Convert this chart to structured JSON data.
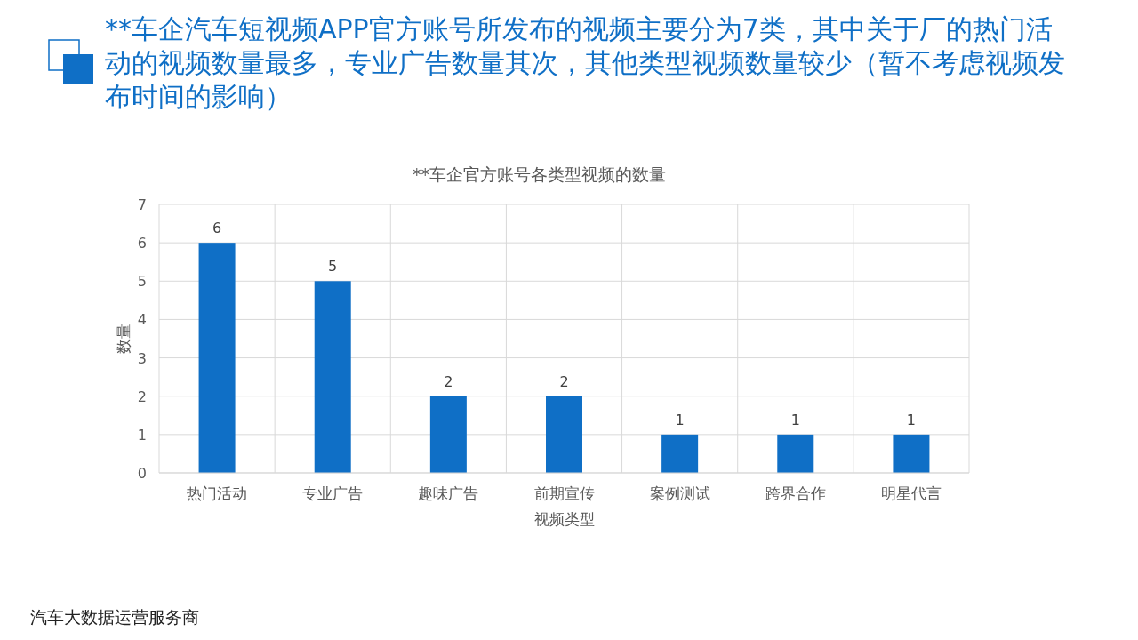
{
  "chart_data": {
    "type": "bar",
    "subtitle": "**车企汽车短视频APP官方账号所发布的视频主要分为7类，其中关于厂的热门活动的视频数量最多，专业广告数量其次，其他类型视频数量较少（暂不考虑视频发布时间的影响）",
    "title": "**车企官方账号各类型视频的数量",
    "xlabel": "视频类型",
    "ylabel": "数量",
    "categories": [
      "热门活动",
      "专业广告",
      "趣味广告",
      "前期宣传",
      "案例测试",
      "跨界合作",
      "明星代言"
    ],
    "values": [
      6,
      5,
      2,
      2,
      1,
      1,
      1
    ],
    "color": "#0f6fc6",
    "ylim": [
      0,
      7
    ],
    "yticks": [
      0,
      1,
      2,
      3,
      4,
      5,
      6,
      7
    ],
    "grid": true,
    "data_labels": true,
    "annotations": [
      "汽车大数据运营服务商"
    ]
  }
}
